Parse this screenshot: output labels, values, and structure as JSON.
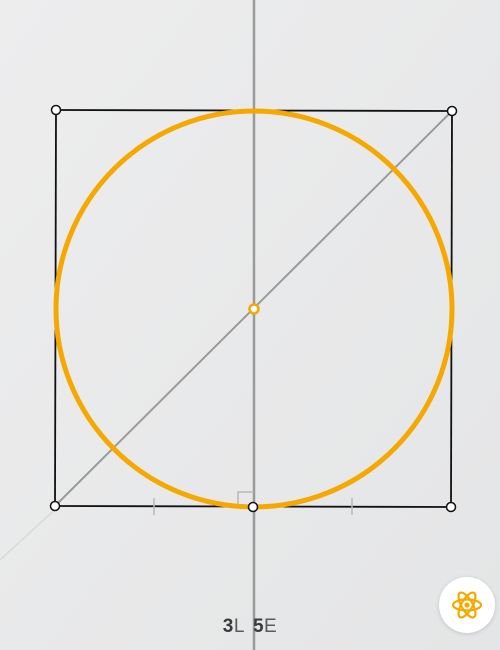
{
  "score": {
    "lines": "3",
    "lines_suffix": "L",
    "euclid": "5",
    "euclid_suffix": "E"
  },
  "colors": {
    "background": "#e9eaeb",
    "accent": "#f5a800",
    "construction_line": "#9a9a9a",
    "solved_segment": "#111111",
    "point_fill": "#ffffff",
    "point_stroke": "#111111"
  },
  "icons": {
    "menu": "atom-icon"
  }
}
